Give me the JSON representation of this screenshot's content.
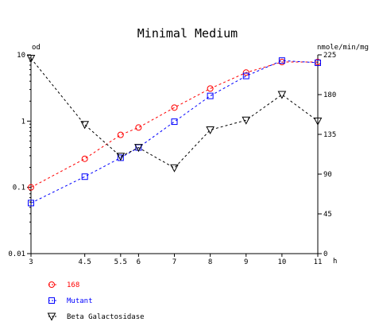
{
  "chart_data": {
    "type": "line",
    "title": "Minimal Medium",
    "x_unit": "h",
    "y_left_unit": "od",
    "y_right_unit": "nmole/min/mg",
    "x_ticks": [
      3,
      4.5,
      5.5,
      6,
      7,
      8,
      9,
      10,
      11
    ],
    "x_tick_labels": [
      "3",
      "4.5",
      "5.5",
      "6",
      "7",
      "8",
      "9",
      "10",
      "11"
    ],
    "xlim": [
      3,
      11
    ],
    "y_left_scale": "log",
    "y_left_ticks": [
      0.01,
      0.1,
      1,
      10
    ],
    "y_left_tick_labels": [
      "0.01",
      "0.1",
      "1",
      "10"
    ],
    "y_left_lim": [
      0.01,
      10
    ],
    "y_right_ticks": [
      0,
      45,
      90,
      135,
      180,
      225
    ],
    "y_right_tick_labels": [
      "0",
      "45",
      "90",
      "135",
      "180",
      "225"
    ],
    "y_right_lim": [
      0,
      225
    ],
    "series": [
      {
        "name": "168",
        "axis": "left",
        "color": "#ff0000",
        "marker": "circle",
        "x": [
          3,
          4.5,
          5.5,
          6,
          7,
          8,
          9,
          10,
          11
        ],
        "y": [
          0.1,
          0.27,
          0.62,
          0.8,
          1.6,
          3.1,
          5.4,
          7.8,
          7.8
        ]
      },
      {
        "name": "Mutant",
        "axis": "left",
        "color": "#0000ff",
        "marker": "square",
        "x": [
          3,
          4.5,
          5.5,
          6,
          7,
          8,
          9,
          10,
          11
        ],
        "y": [
          0.058,
          0.145,
          0.28,
          0.4,
          0.98,
          2.4,
          4.8,
          8.2,
          7.6
        ]
      },
      {
        "name": "Beta Galactosidase",
        "axis": "right",
        "color": "#000000",
        "marker": "triangle-down",
        "x": [
          3,
          4.5,
          5.5,
          6,
          7,
          8,
          9,
          10,
          11
        ],
        "y": [
          221,
          146,
          110,
          120,
          97,
          140,
          151,
          180,
          150
        ]
      }
    ],
    "legend_position": "bottom-left"
  }
}
